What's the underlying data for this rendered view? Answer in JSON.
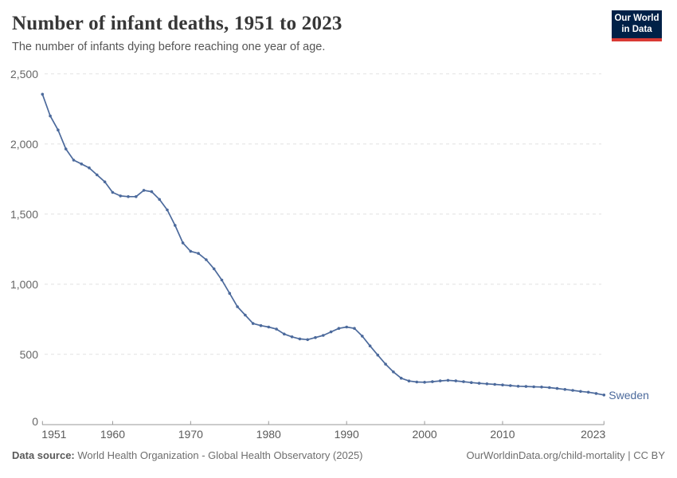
{
  "header": {
    "title": "Number of infant deaths, 1951 to 2023",
    "subtitle": "The number of infants dying before reaching one year of age.",
    "logo": {
      "line1": "Our World",
      "line2": "in Data"
    }
  },
  "colors": {
    "line_blue": "#4c6a9c",
    "logo_navy": "#002147",
    "logo_red": "#d93a34",
    "grid_gray": "#e2e2e2",
    "axis_gray": "#999999",
    "ytick_gray": "#666666",
    "xtick_gray": "#5b5b5b"
  },
  "chart_data": {
    "type": "line",
    "title": "Number of infant deaths, 1951 to 2023",
    "xlabel": "",
    "ylabel": "",
    "xlim": [
      1951,
      2023
    ],
    "ylim": [
      0,
      2500
    ],
    "grid": "horizontal-dashed",
    "legend_position": "end-of-line-label",
    "yticks": [
      0,
      500,
      1000,
      1500,
      2000,
      2500
    ],
    "ytick_labels": [
      "0",
      "500",
      "1,000",
      "1,500",
      "2,000",
      "2,500"
    ],
    "xticks": [
      1951,
      1960,
      1970,
      1980,
      1990,
      2000,
      2010,
      2023
    ],
    "xtick_labels": [
      "1951",
      "1960",
      "1970",
      "1980",
      "1990",
      "2000",
      "2010",
      "2023"
    ],
    "series": [
      {
        "name": "Sweden",
        "color": "#4c6a9c",
        "x": [
          1951,
          1952,
          1953,
          1954,
          1955,
          1956,
          1957,
          1958,
          1959,
          1960,
          1961,
          1962,
          1963,
          1964,
          1965,
          1966,
          1967,
          1968,
          1969,
          1970,
          1971,
          1972,
          1973,
          1974,
          1975,
          1976,
          1977,
          1978,
          1979,
          1980,
          1981,
          1982,
          1983,
          1984,
          1985,
          1986,
          1987,
          1988,
          1989,
          1990,
          1991,
          1992,
          1993,
          1994,
          1995,
          1996,
          1997,
          1998,
          1999,
          2000,
          2001,
          2002,
          2003,
          2004,
          2005,
          2006,
          2007,
          2008,
          2009,
          2010,
          2011,
          2012,
          2013,
          2014,
          2015,
          2016,
          2017,
          2018,
          2019,
          2020,
          2021,
          2022,
          2023
        ],
        "values": [
          2355,
          2200,
          2100,
          1965,
          1885,
          1858,
          1830,
          1780,
          1730,
          1655,
          1630,
          1625,
          1625,
          1670,
          1660,
          1605,
          1530,
          1420,
          1295,
          1235,
          1220,
          1175,
          1110,
          1030,
          935,
          840,
          780,
          720,
          705,
          695,
          680,
          645,
          625,
          610,
          605,
          620,
          635,
          660,
          685,
          695,
          685,
          630,
          560,
          495,
          430,
          375,
          330,
          310,
          303,
          301,
          305,
          311,
          315,
          311,
          305,
          299,
          294,
          290,
          286,
          282,
          277,
          273,
          271,
          269,
          267,
          263,
          257,
          250,
          243,
          236,
          230,
          221,
          210
        ]
      }
    ]
  },
  "footer": {
    "source_label": "Data source:",
    "source_text": " World Health Organization - Global Health Observatory (2025)",
    "link_text": "OurWorldinData.org/child-mortality | CC BY"
  }
}
